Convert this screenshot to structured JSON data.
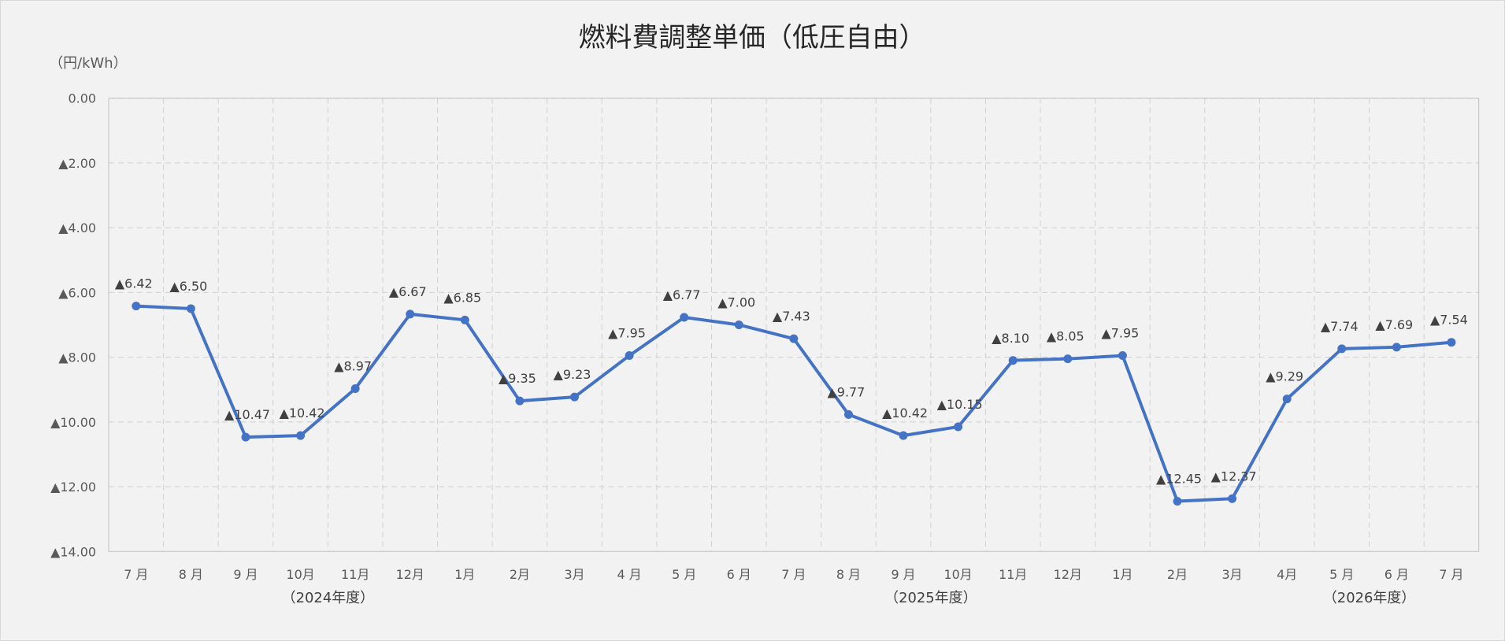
{
  "chart_data": {
    "type": "line",
    "title": "燃料費調整単価（低圧自由）",
    "unit_label": "（円/kWh）",
    "categories": [
      "7 月",
      "8 月",
      "9 月",
      "10月",
      "11月",
      "12月",
      "1月",
      "2月",
      "3月",
      "4 月",
      "5 月",
      "6 月",
      "7 月",
      "8 月",
      "9 月",
      "10月",
      "11月",
      "12月",
      "1月",
      "2月",
      "3月",
      "4月",
      "5 月",
      "6 月",
      "7 月"
    ],
    "series": [
      {
        "values": [
          -6.42,
          -6.5,
          -10.47,
          -10.42,
          -8.97,
          -6.67,
          -6.85,
          -9.35,
          -9.23,
          -7.95,
          -6.77,
          -7.0,
          -7.43,
          -9.77,
          -10.42,
          -10.15,
          -8.1,
          -8.05,
          -7.95,
          -12.45,
          -12.37,
          -9.29,
          -7.74,
          -7.69,
          -7.54
        ]
      }
    ],
    "data_labels": [
      "▲6.42",
      "▲6.50",
      "▲10.47",
      "▲10.42",
      "▲8.97",
      "▲6.67",
      "▲6.85",
      "▲9.35",
      "▲9.23",
      "▲7.95",
      "▲6.77",
      "▲7.00",
      "▲7.43",
      "▲9.77",
      "▲10.42",
      "▲10.15",
      "▲8.10",
      "▲8.05",
      "▲7.95",
      "▲12.45",
      "▲12.37",
      "▲9.29",
      "▲7.74",
      "▲7.69",
      "▲7.54"
    ],
    "y_ticks": [
      {
        "value": 0,
        "label": "0.00"
      },
      {
        "value": -2,
        "label": "▲2.00"
      },
      {
        "value": -4,
        "label": "▲4.00"
      },
      {
        "value": -6,
        "label": "▲6.00"
      },
      {
        "value": -8,
        "label": "▲8.00"
      },
      {
        "value": -10,
        "label": "▲10.00"
      },
      {
        "value": -12,
        "label": "▲12.00"
      },
      {
        "value": -14,
        "label": "▲14.00"
      }
    ],
    "ylim": [
      -14,
      0
    ],
    "period_labels": [
      {
        "label": "（2024年度）",
        "center_index": 3.5
      },
      {
        "label": "（2025年度）",
        "center_index": 14.5
      },
      {
        "label": "（2026年度）",
        "center_index": 22.5
      }
    ],
    "grid": true,
    "legend": "none",
    "colors": {
      "line": "#4472c4"
    }
  }
}
